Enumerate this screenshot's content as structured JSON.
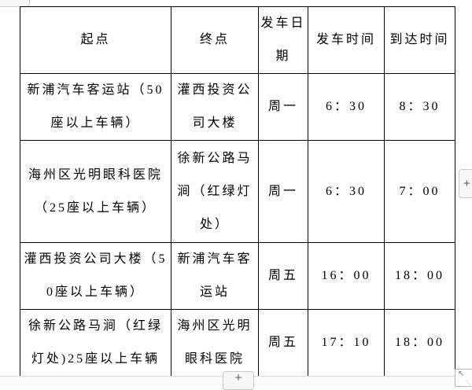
{
  "table": {
    "headers": {
      "origin": "起点",
      "destination": "终点",
      "date": "发车日期",
      "depart": "发车时间",
      "arrive": "到达时间"
    },
    "rows": [
      {
        "origin": "新浦汽车客运站（50座以上车辆）",
        "destination": "灌西投资公司大楼",
        "date": "周一",
        "depart": "6：30",
        "arrive": "8：30"
      },
      {
        "origin": "海州区光明眼科医院（25座以上车辆）",
        "destination": "徐新公路马涧（红绿灯处）",
        "date": "周一",
        "depart": "6：30",
        "arrive": "7：00"
      },
      {
        "origin": "灌西投资公司大楼（50座以上车辆）",
        "destination": "新浦汽车客运站",
        "date": "周五",
        "depart": "16：00",
        "arrive": "18：00"
      },
      {
        "origin": "徐新公路马涧（红绿灯处)25座以上车辆",
        "destination": "海州区光明眼科医院",
        "date": "周五",
        "depart": "17：10",
        "arrive": "18：00"
      }
    ]
  },
  "controls": {
    "add_column_label": "+",
    "add_row_label": "+",
    "resize_arrow": "↖",
    "resize_dots": "⋱"
  },
  "colors": {
    "table_border": "#000000",
    "text": "#000000",
    "control_background": "#f7f7f7",
    "control_border": "#c9c9c9",
    "control_text": "#555555"
  }
}
